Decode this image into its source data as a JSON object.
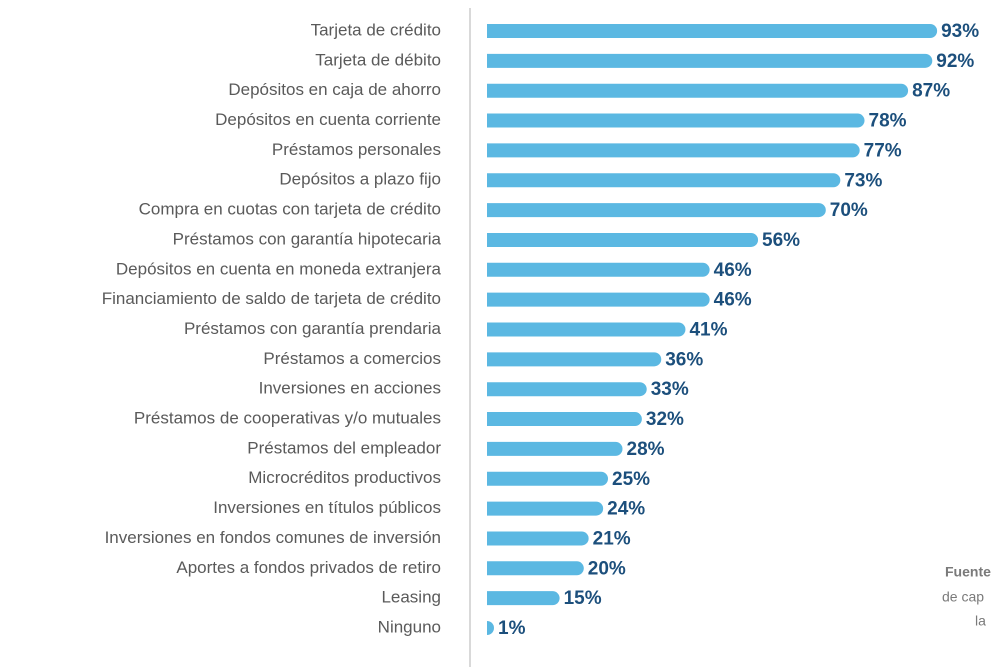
{
  "chart_data": {
    "type": "hbar",
    "categories": [
      "Tarjeta de crédito",
      "Tarjeta de débito",
      "Depósitos en caja de ahorro",
      "Depósitos en cuenta corriente",
      "Préstamos personales",
      "Depósitos a plazo fijo",
      "Compra en cuotas con tarjeta de crédito",
      "Préstamos con garantía hipotecaria",
      "Depósitos en cuenta en moneda extranjera",
      "Financiamiento de saldo de tarjeta de crédito",
      "Préstamos con garantía prendaria",
      "Préstamos a comercios",
      "Inversiones en acciones",
      "Préstamos de cooperativas y/o mutuales",
      "Préstamos del empleador",
      "Microcréditos productivos",
      "Inversiones en títulos públicos",
      "Inversiones en fondos comunes de inversión",
      "Aportes a fondos privados de retiro",
      "Leasing",
      "Ninguno"
    ],
    "values": [
      93,
      92,
      87,
      78,
      77,
      73,
      70,
      56,
      46,
      46,
      41,
      36,
      33,
      32,
      28,
      25,
      24,
      21,
      20,
      15,
      1
    ],
    "value_labels": [
      "93%",
      "92%",
      "87%",
      "78%",
      "77%",
      "73%",
      "70%",
      "56%",
      "46%",
      "46%",
      "41%",
      "36%",
      "33%",
      "32%",
      "28%",
      "25%",
      "24%",
      "21%",
      "20%",
      "15%",
      "1%"
    ],
    "color": "#5bb8e2",
    "xlim": [
      0,
      100
    ],
    "annotations": [
      "Fuente",
      "de cap",
      "la"
    ]
  }
}
